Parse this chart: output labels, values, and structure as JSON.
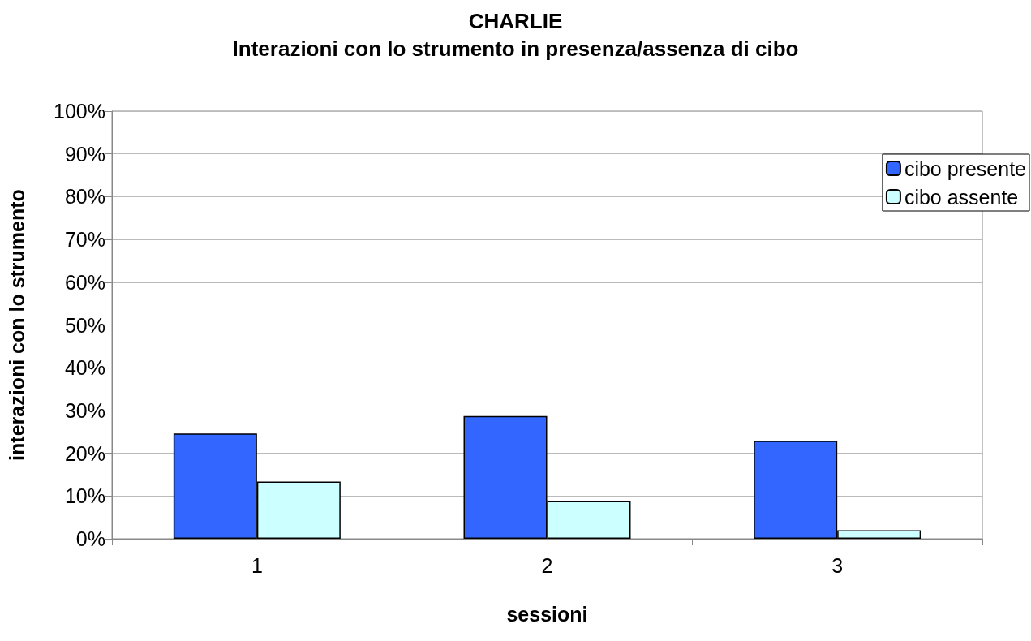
{
  "chart_data": {
    "type": "bar",
    "title": "CHARLIE",
    "subtitle": "Interazioni con lo strumento in presenza/assenza di cibo",
    "xlabel": "sessioni",
    "ylabel": "interazioni con lo strumento",
    "categories": [
      "1",
      "2",
      "3"
    ],
    "series": [
      {
        "name": "cibo presente",
        "color": "#3366ff",
        "values": [
          24.6,
          28.7,
          22.9
        ]
      },
      {
        "name": "cibo assente",
        "color": "#ccffff",
        "values": [
          13.4,
          8.8,
          2.0
        ]
      }
    ],
    "ylim": [
      0,
      100
    ],
    "yticks": [
      {
        "value": 0,
        "label": "0%"
      },
      {
        "value": 10,
        "label": "10%"
      },
      {
        "value": 20,
        "label": "20%"
      },
      {
        "value": 30,
        "label": "30%"
      },
      {
        "value": 40,
        "label": "40%"
      },
      {
        "value": 50,
        "label": "50%"
      },
      {
        "value": 60,
        "label": "60%"
      },
      {
        "value": 70,
        "label": "70%"
      },
      {
        "value": 80,
        "label": "80%"
      },
      {
        "value": 90,
        "label": "90%"
      },
      {
        "value": 100,
        "label": "100%"
      }
    ],
    "grid": "y",
    "legend": "right"
  }
}
